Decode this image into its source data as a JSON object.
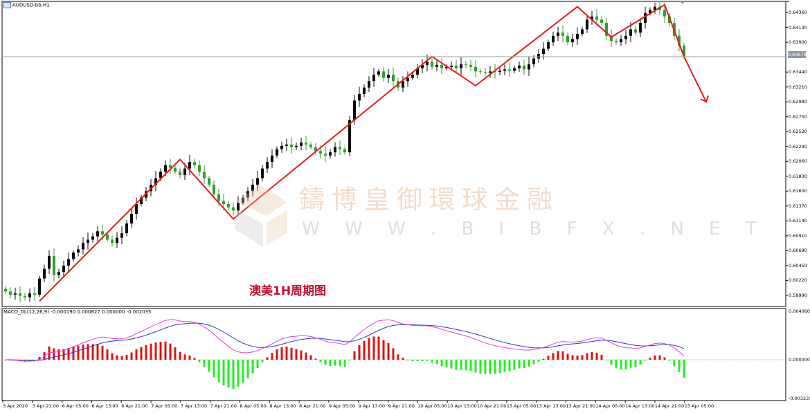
{
  "window": {
    "title": "AUDUSD-bb,H1"
  },
  "watermark": {
    "brand": "鑄博皇御環球金融",
    "url": "W W W . B I B F X . N E T"
  },
  "annotation": "澳美1H周期图",
  "price_axis": {
    "labels": [
      "0.64360",
      "0.64130",
      "0.63900",
      "0.63440",
      "0.63210",
      "0.62980",
      "0.62750",
      "0.62520",
      "0.62290",
      "0.62060",
      "0.61830",
      "0.61600",
      "0.61370",
      "0.61140",
      "0.60910",
      "0.60680",
      "0.60450",
      "0.60220",
      "0.59990"
    ],
    "current_price": "0.63678"
  },
  "time_axis": {
    "labels": [
      "3 Apr 2020",
      "3 Apr 21:00",
      "6 Apr 05:00",
      "6 Apr 13:00",
      "6 Apr 21:00",
      "7 Apr 05:00",
      "7 Apr 13:00",
      "7 Apr 21:00",
      "8 Apr 05:00",
      "8 Apr 13:00",
      "8 Apr 21:00",
      "9 Apr 05:00",
      "9 Apr 13:00",
      "9 Apr 21:00",
      "10 Apr 05:00",
      "10 Apr 13:00",
      "10 Apr 21:00",
      "13 Apr 05:00",
      "13 Apr 13:00",
      "13 Apr 21:00",
      "14 Apr 05:00",
      "14 Apr 13:00",
      "14 Apr 21:00",
      "15 Apr 05:00"
    ]
  },
  "macd": {
    "label": "MACD_DL(12,26,9) -0.000190 0.000827 0.000000 -0.002035",
    "axis_labels": [
      "0.004060",
      "0.000000",
      "-0.003231"
    ]
  },
  "colors": {
    "bull": "#0a0a0a",
    "bear": "#2ea02e",
    "trend": "#e31c1c",
    "hist_pos": "#e01010",
    "hist_neg": "#22ee22",
    "macd_line": "#2a34d8",
    "signal_line": "#e040e0",
    "annotation": "#c8102e"
  },
  "chart_data": [
    {
      "type": "candlestick",
      "title": "AUDUSD-bb,H1",
      "ylim": [
        0.5985,
        0.645
      ],
      "y_ticks": [
        0.6436,
        0.6413,
        0.639,
        0.6344,
        0.6321,
        0.6298,
        0.6275,
        0.6252,
        0.6229,
        0.6206,
        0.6183,
        0.616,
        0.6137,
        0.6114,
        0.6091,
        0.6068,
        0.6045,
        0.6022,
        0.5999
      ],
      "current_price": 0.63678,
      "close": [
        0.6005,
        0.6,
        0.6002,
        0.5998,
        0.5996,
        0.6002,
        0.6,
        0.6025,
        0.604,
        0.606,
        0.603,
        0.6035,
        0.6045,
        0.6055,
        0.6065,
        0.607,
        0.608,
        0.6085,
        0.609,
        0.6098,
        0.6093,
        0.6085,
        0.608,
        0.6088,
        0.6095,
        0.611,
        0.6125,
        0.614,
        0.615,
        0.616,
        0.617,
        0.618,
        0.619,
        0.62,
        0.6196,
        0.619,
        0.6185,
        0.6195,
        0.6205,
        0.62,
        0.619,
        0.618,
        0.617,
        0.6155,
        0.6145,
        0.614,
        0.6135,
        0.613,
        0.6142,
        0.615,
        0.616,
        0.617,
        0.618,
        0.6195,
        0.6205,
        0.6215,
        0.6225,
        0.623,
        0.6232,
        0.6228,
        0.623,
        0.6235,
        0.6232,
        0.6228,
        0.6222,
        0.6218,
        0.6215,
        0.622,
        0.6228,
        0.6225,
        0.622,
        0.627,
        0.63,
        0.631,
        0.632,
        0.633,
        0.634,
        0.6345,
        0.6335,
        0.634,
        0.633,
        0.632,
        0.633,
        0.6335,
        0.634,
        0.635,
        0.6355,
        0.636,
        0.6352,
        0.6355,
        0.635,
        0.6352,
        0.6354,
        0.635,
        0.6356,
        0.6355,
        0.6352,
        0.6345,
        0.6344,
        0.6343,
        0.6345,
        0.6344,
        0.6346,
        0.6348,
        0.6346,
        0.635,
        0.6354,
        0.6348,
        0.6356,
        0.6365,
        0.6372,
        0.638,
        0.639,
        0.64,
        0.6405,
        0.64,
        0.639,
        0.6395,
        0.6403,
        0.641,
        0.6425,
        0.643,
        0.6425,
        0.642,
        0.64,
        0.6392,
        0.639,
        0.6395,
        0.64,
        0.641,
        0.6405,
        0.642,
        0.6435,
        0.644,
        0.6445,
        0.644,
        0.643,
        0.642,
        0.64,
        0.6385,
        0.63678
      ]
    },
    {
      "type": "macd",
      "title": "MACD_DL(12,26,9)",
      "params": [
        12,
        26,
        9
      ],
      "values": {
        "a": -0.00019,
        "b": 0.000827,
        "c": 0.0,
        "d": -0.002035
      },
      "ylim": [
        -0.003231,
        0.00406
      ]
    }
  ]
}
